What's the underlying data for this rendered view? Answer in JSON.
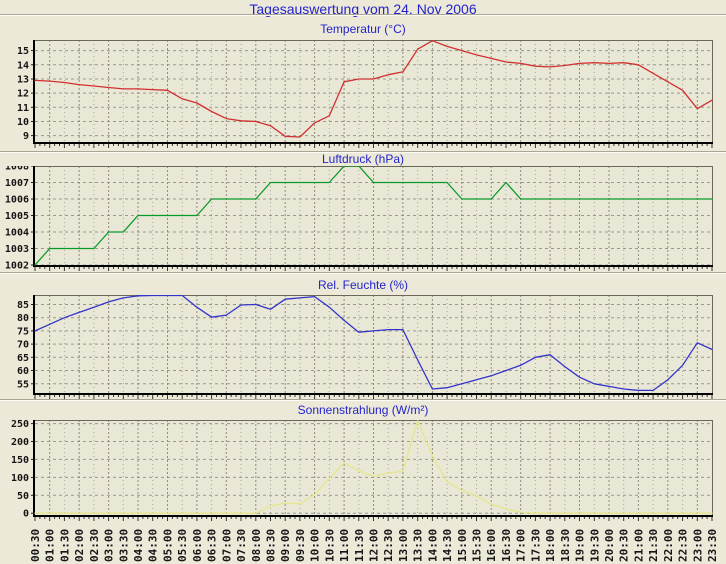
{
  "page": {
    "title": "Tagesauswertung vom 24. Nov 2006"
  },
  "chart_data": {
    "type": "line",
    "categories": [
      "00:30",
      "01:00",
      "01:30",
      "02:00",
      "02:30",
      "03:00",
      "03:30",
      "04:00",
      "04:30",
      "05:00",
      "05:30",
      "06:00",
      "06:30",
      "07:00",
      "07:30",
      "08:00",
      "08:30",
      "09:00",
      "09:30",
      "10:00",
      "10:30",
      "11:00",
      "11:30",
      "12:00",
      "12:30",
      "13:00",
      "13:30",
      "14:00",
      "14:30",
      "15:00",
      "15:30",
      "16:00",
      "16:30",
      "17:00",
      "17:30",
      "18:00",
      "18:30",
      "19:00",
      "19:30",
      "20:00",
      "20:30",
      "21:00",
      "21:30",
      "22:00",
      "22:30",
      "23:00",
      "23:30"
    ],
    "grid": "dashed",
    "legend": "none",
    "charts": [
      {
        "id": "temperatur",
        "title": "Temperatur (°C)",
        "color": "#d22f2f",
        "ylim": [
          8.55,
          15.75
        ],
        "yticks": [
          9,
          10,
          11,
          12,
          13,
          14,
          15
        ],
        "values": [
          12.9,
          12.85,
          12.75,
          12.6,
          12.5,
          12.4,
          12.3,
          12.3,
          12.25,
          12.2,
          11.6,
          11.3,
          10.7,
          10.2,
          10.05,
          10.0,
          9.7,
          8.95,
          8.9,
          9.9,
          10.4,
          12.8,
          13.0,
          13.0,
          13.3,
          13.5,
          15.1,
          15.7,
          15.3,
          15.0,
          14.7,
          14.45,
          14.2,
          14.1,
          13.9,
          13.85,
          13.95,
          14.1,
          14.15,
          14.1,
          14.15,
          14.0,
          13.4,
          12.8,
          12.2,
          10.9,
          11.5
        ]
      },
      {
        "id": "luftdruck",
        "title": "Luftdruck (hPa)",
        "color": "#089a28",
        "ylim": [
          1002,
          1008
        ],
        "yticks": [
          1002,
          1003,
          1004,
          1005,
          1006,
          1007,
          1008
        ],
        "values": [
          1002,
          1003,
          1003,
          1003,
          1003,
          1004,
          1004,
          1005,
          1005,
          1005,
          1005,
          1005,
          1006,
          1006,
          1006,
          1006,
          1007,
          1007,
          1007,
          1007,
          1007,
          1008,
          1008,
          1007,
          1007,
          1007,
          1007,
          1007,
          1007,
          1006,
          1006,
          1006,
          1007,
          1006,
          1006,
          1006,
          1006,
          1006,
          1006,
          1006,
          1006,
          1006,
          1006,
          1006,
          1006,
          1006,
          1006
        ]
      },
      {
        "id": "feuchte",
        "title": "Rel. Feuchte (%)",
        "color": "#3333cc",
        "ylim": [
          51.5,
          88.6
        ],
        "yticks": [
          55,
          60,
          65,
          70,
          75,
          80,
          85
        ],
        "values": [
          75,
          77.5,
          80,
          82,
          84,
          86,
          87.5,
          88.3,
          88.4,
          88.5,
          88.4,
          84,
          80.2,
          81,
          84.8,
          85,
          83.2,
          87,
          87.5,
          88,
          84,
          79,
          74.5,
          75,
          75.5,
          75.5,
          64,
          53,
          53.5,
          55,
          56.5,
          58,
          60,
          62,
          65,
          66,
          61.5,
          57.5,
          55,
          54,
          53,
          52.5,
          52.5,
          56.5,
          62,
          70.5,
          68
        ]
      },
      {
        "id": "sonnenstrahlung",
        "title": "Sonnenstrahlung (W/m²)",
        "color": "#e6e68a",
        "ylim": [
          -5,
          260
        ],
        "yticks": [
          0,
          50,
          100,
          150,
          200,
          250
        ],
        "values": [
          0,
          0,
          0,
          0,
          0,
          0,
          0,
          0,
          0,
          0,
          0,
          0,
          0,
          0,
          0,
          0,
          20,
          28,
          26,
          52,
          97,
          140,
          118,
          103,
          112,
          117,
          258,
          160,
          88,
          64,
          48,
          25,
          12,
          3,
          0,
          0,
          0,
          0,
          0,
          0,
          0,
          0,
          0,
          0,
          0,
          0,
          0
        ]
      }
    ]
  }
}
